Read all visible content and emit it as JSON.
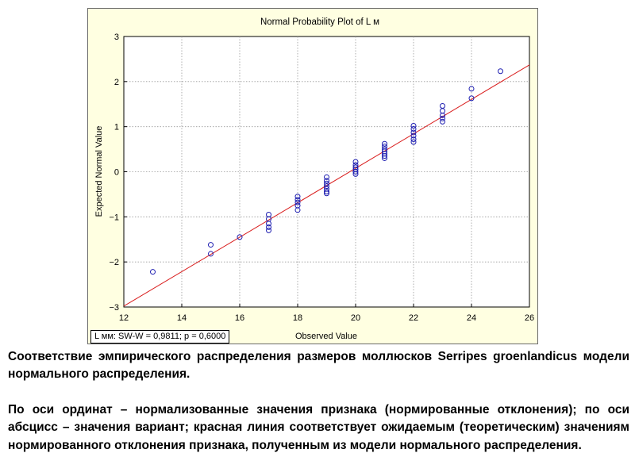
{
  "chart_data": {
    "type": "scatter",
    "title": "Normal Probability Plot of L м",
    "xlabel": "Observed Value",
    "ylabel": "Expected Normal Value",
    "xlim": [
      12,
      26
    ],
    "ylim": [
      -3,
      3
    ],
    "xticks": [
      12,
      14,
      16,
      18,
      20,
      22,
      24,
      26
    ],
    "yticks": [
      -3,
      -2,
      -1,
      0,
      1,
      2,
      3
    ],
    "grid": true,
    "points": [
      [
        13,
        -2.22
      ],
      [
        15,
        -1.62
      ],
      [
        15,
        -1.82
      ],
      [
        16,
        -1.45
      ],
      [
        17,
        -0.95
      ],
      [
        17,
        -1.05
      ],
      [
        17,
        -1.15
      ],
      [
        17,
        -1.23
      ],
      [
        17,
        -1.3
      ],
      [
        18,
        -0.55
      ],
      [
        18,
        -0.62
      ],
      [
        18,
        -0.68
      ],
      [
        18,
        -0.75
      ],
      [
        18,
        -0.85
      ],
      [
        19,
        -0.12
      ],
      [
        19,
        -0.2
      ],
      [
        19,
        -0.26
      ],
      [
        19,
        -0.32
      ],
      [
        19,
        -0.38
      ],
      [
        19,
        -0.44
      ],
      [
        19,
        -0.48
      ],
      [
        20,
        0.22
      ],
      [
        20,
        0.15
      ],
      [
        20,
        0.1
      ],
      [
        20,
        0.05
      ],
      [
        20,
        0.0
      ],
      [
        20,
        -0.05
      ],
      [
        21,
        0.62
      ],
      [
        21,
        0.56
      ],
      [
        21,
        0.5
      ],
      [
        21,
        0.45
      ],
      [
        21,
        0.4
      ],
      [
        21,
        0.35
      ],
      [
        21,
        0.3
      ],
      [
        22,
        1.02
      ],
      [
        22,
        0.95
      ],
      [
        22,
        0.87
      ],
      [
        22,
        0.8
      ],
      [
        22,
        0.72
      ],
      [
        22,
        0.66
      ],
      [
        23,
        1.46
      ],
      [
        23,
        1.35
      ],
      [
        23,
        1.25
      ],
      [
        23,
        1.18
      ],
      [
        23,
        1.11
      ],
      [
        24,
        1.84
      ],
      [
        24,
        1.63
      ],
      [
        25,
        2.23
      ]
    ],
    "fit_line": [
      [
        12,
        -2.98
      ],
      [
        26,
        2.37
      ]
    ],
    "colors": {
      "points": "#1c1cb0",
      "line": "#d91c1c",
      "grid": "#9a9a9a",
      "background": "#ffffe1"
    }
  },
  "stats_label": "L мм:  SW-W = 0,9811; p = 0,6000",
  "caption": {
    "p1": "Соответствие эмпирического распределения размеров моллюсков Serripes groenlandicus модели нормального распределения.",
    "p2": "По оси ординат – нормализованные значения признака (нормированные отклонения); по оси абсцисс – значения вариант; красная линия соответствует ожидаемым (теоретическим) значениям нормированного отклонения признака, полученным из модели нормального распределения."
  }
}
